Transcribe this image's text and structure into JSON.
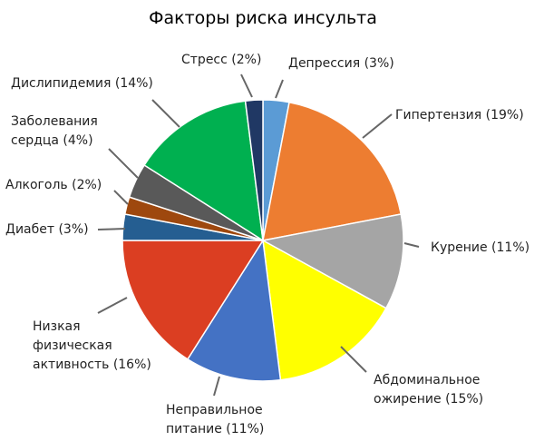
{
  "chart_data": {
    "type": "pie",
    "title": "Факторы риска инсульта",
    "slices": [
      {
        "name": "Депрессия",
        "value": 3,
        "label": "Депрессия (3%)",
        "color": "#5b9bd5"
      },
      {
        "name": "Гипертензия",
        "value": 19,
        "label": "Гипертензия (19%)",
        "color": "#ed7d31"
      },
      {
        "name": "Курение",
        "value": 11,
        "label": "Курение (11%)",
        "color": "#a5a5a5"
      },
      {
        "name": "Абдоминальное ожирение",
        "value": 15,
        "label": "Абдоминальное ожирение (15%)",
        "color": "#ffff00"
      },
      {
        "name": "Неправильное питание",
        "value": 11,
        "label": "Неправильное питание (11%)",
        "color": "#4472c4"
      },
      {
        "name": "Низкая физическая активность",
        "value": 16,
        "label": "Низкая физическая активность (16%)",
        "color": "#db3e22"
      },
      {
        "name": "Диабет",
        "value": 3,
        "label": "Диабет (3%)",
        "color": "#255e91"
      },
      {
        "name": "Алкоголь",
        "value": 2,
        "label": "Алкоголь (2%)",
        "color": "#9e480e"
      },
      {
        "name": "Заболевания сердца",
        "value": 4,
        "label": "Заболевания сердца (4%)",
        "color": "#595959"
      },
      {
        "name": "Дислипидемия",
        "value": 14,
        "label": "Дислипидемия (14%)",
        "color": "#00b050"
      },
      {
        "name": "Стресс",
        "value": 2,
        "label": "Стресс (2%)",
        "color": "#203864"
      }
    ],
    "start": "top, clockwise",
    "legend": "none (callout labels with leader lines)"
  }
}
